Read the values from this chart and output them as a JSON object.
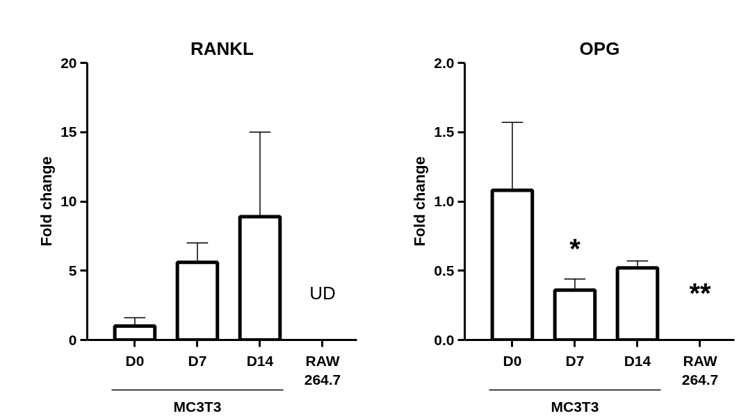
{
  "chart_data": [
    {
      "type": "bar",
      "title": "RANKL",
      "ylabel": "Fold change",
      "categories": [
        "D0",
        "D7",
        "D14",
        "RAW\n264.7"
      ],
      "values": [
        1.0,
        5.6,
        8.9,
        null
      ],
      "errors": [
        [
          1.0,
          1.6
        ],
        [
          5.6,
          7.0
        ],
        [
          8.9,
          15.0
        ],
        null
      ],
      "ylim": [
        0,
        20
      ],
      "yticks": [
        0,
        5,
        10,
        15,
        20
      ],
      "annotations": [
        "UD",
        "MC3T3"
      ]
    },
    {
      "type": "bar",
      "title": "OPG",
      "ylabel": "Fold change",
      "categories": [
        "D0",
        "D7",
        "D14",
        "RAW\n264.7"
      ],
      "values": [
        1.08,
        0.36,
        0.52,
        null
      ],
      "errors": [
        [
          1.08,
          1.57
        ],
        [
          0.36,
          0.44
        ],
        [
          0.52,
          0.57
        ],
        null
      ],
      "ylim": [
        0,
        2.0
      ],
      "yticks": [
        {
          "value": 0,
          "label": "0.0"
        },
        {
          "value": 0.5,
          "label": "0.5"
        },
        {
          "value": 1.0,
          "label": "1.0"
        },
        {
          "value": 1.5,
          "label": "1.5"
        },
        {
          "value": 2.0,
          "label": "2.0"
        }
      ],
      "annotations": [
        "*",
        "**",
        "MC3T3"
      ]
    }
  ]
}
